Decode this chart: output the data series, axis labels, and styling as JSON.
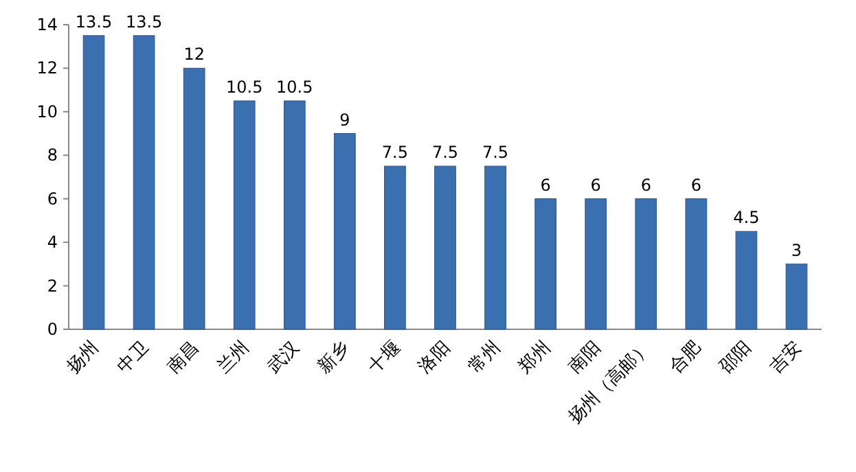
{
  "chart_data": {
    "type": "bar",
    "categories": [
      "扬州",
      "中卫",
      "南昌",
      "兰州",
      "武汉",
      "新乡",
      "十堰",
      "洛阳",
      "常州",
      "郑州",
      "南阳",
      "扬州（高邮）",
      "合肥",
      "邵阳",
      "吉安"
    ],
    "values": [
      13.5,
      13.5,
      12,
      10.5,
      10.5,
      9,
      7.5,
      7.5,
      7.5,
      6,
      6,
      6,
      6,
      4.5,
      3
    ],
    "color": "#3a6fb0",
    "ylim": [
      0,
      14
    ],
    "yticks": [
      0,
      2,
      4,
      6,
      8,
      10,
      12,
      14
    ],
    "data_labels": true
  }
}
